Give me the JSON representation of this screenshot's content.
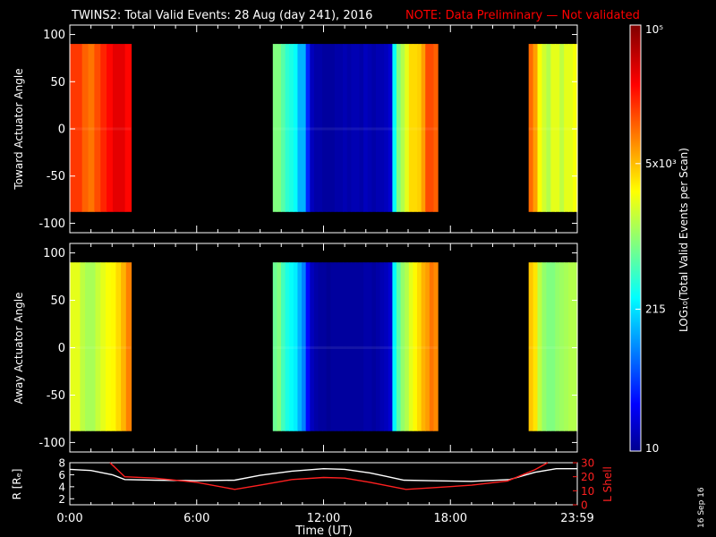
{
  "title": "TWINS2: Total Valid Events: 28 Aug (day 241), 2016",
  "note": "NOTE: Data Preliminary — Not validated",
  "date_stamp": "16 Sep 16",
  "colors": {
    "background": "#000000",
    "axes": "#ffffff",
    "note": "#ff0000",
    "lshell": "#ff2020",
    "radius": "#ffffff"
  },
  "chart_data": [
    {
      "type": "heatmap",
      "name": "toward-panel",
      "ylabel": "Toward Actuator Angle",
      "xlim": [
        0,
        24
      ],
      "ylim": [
        -110,
        110
      ],
      "yticks": [
        -100,
        -50,
        0,
        50,
        100
      ],
      "data_ylim": [
        -88,
        90
      ],
      "blocks": [
        {
          "start": 0.0,
          "end": 2.9,
          "profile": [
            0.82,
            0.82,
            0.78,
            0.76,
            0.8,
            0.84,
            0.87,
            0.9,
            0.9,
            0.87
          ]
        },
        {
          "start": 9.6,
          "end": 17.4,
          "profile": [
            0.5,
            0.5,
            0.46,
            0.42,
            0.4,
            0.38,
            0.3,
            0.3,
            0.16,
            0.06,
            0.04,
            0.04,
            0.03,
            0.03,
            0.03,
            0.04,
            0.04,
            0.05,
            0.04,
            0.05,
            0.05,
            0.04,
            0.06,
            0.05,
            0.04,
            0.05,
            0.05,
            0.06,
            0.08,
            0.38,
            0.5,
            0.55,
            0.6,
            0.66,
            0.66,
            0.67,
            0.72,
            0.8,
            0.8,
            0.78
          ]
        },
        {
          "start": 21.7,
          "end": 24.0,
          "profile": [
            0.77,
            0.72,
            0.62,
            0.58,
            0.55,
            0.6,
            0.6,
            0.56,
            0.6,
            0.6,
            0.62
          ]
        }
      ]
    },
    {
      "type": "heatmap",
      "name": "away-panel",
      "ylabel": "Away Actuator Angle",
      "xlim": [
        0,
        24
      ],
      "ylim": [
        -110,
        110
      ],
      "yticks": [
        -100,
        -50,
        0,
        50,
        100
      ],
      "data_ylim": [
        -88,
        90
      ],
      "blocks": [
        {
          "start": 0.0,
          "end": 2.9,
          "profile": [
            0.6,
            0.6,
            0.56,
            0.54,
            0.54,
            0.57,
            0.6,
            0.62,
            0.63,
            0.66,
            0.7,
            0.75
          ]
        },
        {
          "start": 9.6,
          "end": 17.4,
          "profile": [
            0.48,
            0.5,
            0.44,
            0.4,
            0.38,
            0.36,
            0.3,
            0.25,
            0.13,
            0.06,
            0.04,
            0.03,
            0.03,
            0.02,
            0.03,
            0.03,
            0.03,
            0.03,
            0.03,
            0.03,
            0.03,
            0.03,
            0.04,
            0.04,
            0.03,
            0.04,
            0.05,
            0.06,
            0.08,
            0.37,
            0.46,
            0.52,
            0.55,
            0.6,
            0.63,
            0.66,
            0.7,
            0.72,
            0.76,
            0.74
          ]
        },
        {
          "start": 21.7,
          "end": 24.0,
          "profile": [
            0.68,
            0.65,
            0.56,
            0.52,
            0.5,
            0.5,
            0.52,
            0.53,
            0.54,
            0.55,
            0.55
          ]
        }
      ]
    },
    {
      "type": "line",
      "name": "orbit-panel",
      "xlabel": "Time (UT)",
      "xlim": [
        0,
        24
      ],
      "xticks": [
        0,
        6,
        12,
        18,
        24
      ],
      "xtick_labels": [
        "0:00",
        "6:00",
        "12:00",
        "18:00",
        "23:59"
      ],
      "left_axis": {
        "label": "R [Rₑ]",
        "ylim": [
          1,
          8
        ],
        "ticks": [
          2,
          4,
          6,
          8
        ]
      },
      "right_axis": {
        "label": "L Shell",
        "ylim": [
          0,
          30
        ],
        "ticks": [
          0,
          10,
          20,
          30
        ]
      },
      "series": [
        {
          "name": "R [Rₑ]",
          "axis": "left",
          "color": "#ffffff",
          "x": [
            0,
            1,
            2,
            2.6,
            4,
            6,
            7.8,
            9,
            10.5,
            12,
            13,
            14.2,
            15,
            15.8,
            17,
            19,
            20.8,
            22,
            23,
            24
          ],
          "y": [
            6.9,
            6.7,
            6.0,
            5.2,
            5.1,
            5.0,
            5.1,
            5.9,
            6.6,
            7.0,
            6.9,
            6.3,
            5.7,
            5.1,
            5.0,
            4.9,
            5.2,
            6.4,
            7.0,
            7.0
          ]
        },
        {
          "name": "L Shell",
          "axis": "right",
          "color": "#ff2020",
          "x": [
            1.9,
            2.6,
            4,
            6,
            7.8,
            9,
            10.5,
            12,
            13,
            14.2,
            15.9,
            17,
            19,
            20.7,
            22,
            22.6
          ],
          "y": [
            30,
            20,
            19,
            16,
            11,
            14,
            18,
            19.5,
            19,
            16,
            11,
            12,
            14,
            17,
            25,
            30
          ]
        }
      ]
    },
    {
      "type": "colorbar",
      "name": "colorbar",
      "label": "LOG₁₀(Total Valid Events per Scan)",
      "range": [
        10,
        100000
      ],
      "scale": "log",
      "ticks": [
        {
          "value": 10,
          "label": "10"
        },
        {
          "value": 215,
          "label": "215"
        },
        {
          "value": 5000,
          "label": "5x10³"
        },
        {
          "value": 100000,
          "label": "10⁵"
        }
      ]
    }
  ]
}
